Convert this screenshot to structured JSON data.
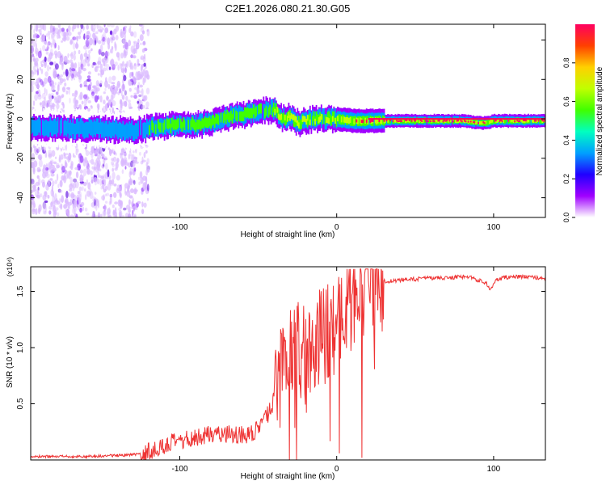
{
  "title": "C2E1.2026.080.21.30.G05",
  "chart_data": [
    {
      "type": "heatmap",
      "title": "C2E1.2026.080.21.30.G05",
      "xlabel": "Height of straight line (km)",
      "ylabel": "Frequency (Hz)",
      "xlim": [
        -195,
        133
      ],
      "ylim": [
        -50,
        48
      ],
      "xticks": [
        -100,
        0,
        100
      ],
      "yticks": [
        -40,
        -20,
        0,
        20,
        40
      ],
      "grid": false,
      "colorbar": {
        "label": "Normalized spectral amplitude",
        "range": [
          0.0,
          1.0
        ],
        "ticks": [
          0.0,
          0.2,
          0.4,
          0.6,
          0.8
        ],
        "tick_labels": [
          "0.0",
          "0.2",
          "0.4",
          "0.6",
          "0.8"
        ],
        "colormap": [
          "#ffffff",
          "#a000ff",
          "#2000ff",
          "#00a0ff",
          "#00ffc0",
          "#40ff00",
          "#c0ff00",
          "#ffd000",
          "#ff4000",
          "#ff0060"
        ]
      },
      "ridge": {
        "x": [
          -190,
          -170,
          -150,
          -130,
          -115,
          -100,
          -90,
          -80,
          -70,
          -60,
          -55,
          -50,
          -45,
          -40,
          -35,
          -30,
          -25,
          -20,
          -15,
          -10,
          -5,
          0,
          10,
          20,
          40,
          60,
          80,
          90,
          95,
          100,
          133
        ],
        "frequency": [
          -4,
          -5,
          -5,
          -6,
          -4,
          -3,
          -3,
          -2,
          1,
          2,
          3,
          4,
          4,
          5,
          0,
          1,
          -2,
          -1,
          0,
          0,
          0,
          0,
          -1,
          -1,
          -1,
          -1,
          -1,
          -2,
          -2,
          -1,
          -1
        ]
      }
    },
    {
      "type": "line",
      "xlabel": "Height of straight line (km)",
      "ylabel": "SNR (10 * v/v)",
      "y_multiplier": "(x10⁴)",
      "xlim": [
        -195,
        133
      ],
      "ylim": [
        0.0,
        1.72
      ],
      "xticks": [
        -100,
        0,
        100
      ],
      "yticks": [
        0.5,
        1.0,
        1.5
      ],
      "ytick_labels": [
        "0.5",
        "1.0",
        "1.5"
      ],
      "grid": false,
      "color": "#ee3333",
      "series": [
        {
          "name": "SNR",
          "x": [
            -195,
            -180,
            -160,
            -140,
            -125,
            -115,
            -105,
            -95,
            -85,
            -75,
            -65,
            -55,
            -48,
            -42,
            -38,
            -34,
            -30,
            -26,
            -22,
            -18,
            -14,
            -10,
            -6,
            -2,
            2,
            6,
            10,
            14,
            18,
            22,
            26,
            30,
            40,
            50,
            60,
            70,
            80,
            85,
            90,
            95,
            98,
            100,
            102,
            105,
            110,
            120,
            133
          ],
          "y": [
            0.03,
            0.03,
            0.03,
            0.04,
            0.05,
            0.1,
            0.15,
            0.18,
            0.22,
            0.24,
            0.23,
            0.22,
            0.3,
            0.45,
            0.65,
            0.8,
            0.9,
            0.95,
            1.0,
            1.05,
            1.05,
            1.1,
            1.12,
            1.18,
            1.25,
            1.35,
            1.42,
            1.48,
            1.52,
            1.55,
            1.58,
            1.59,
            1.6,
            1.61,
            1.62,
            1.62,
            1.63,
            1.63,
            1.6,
            1.58,
            1.52,
            1.56,
            1.6,
            1.62,
            1.63,
            1.63,
            1.62
          ]
        }
      ]
    }
  ]
}
